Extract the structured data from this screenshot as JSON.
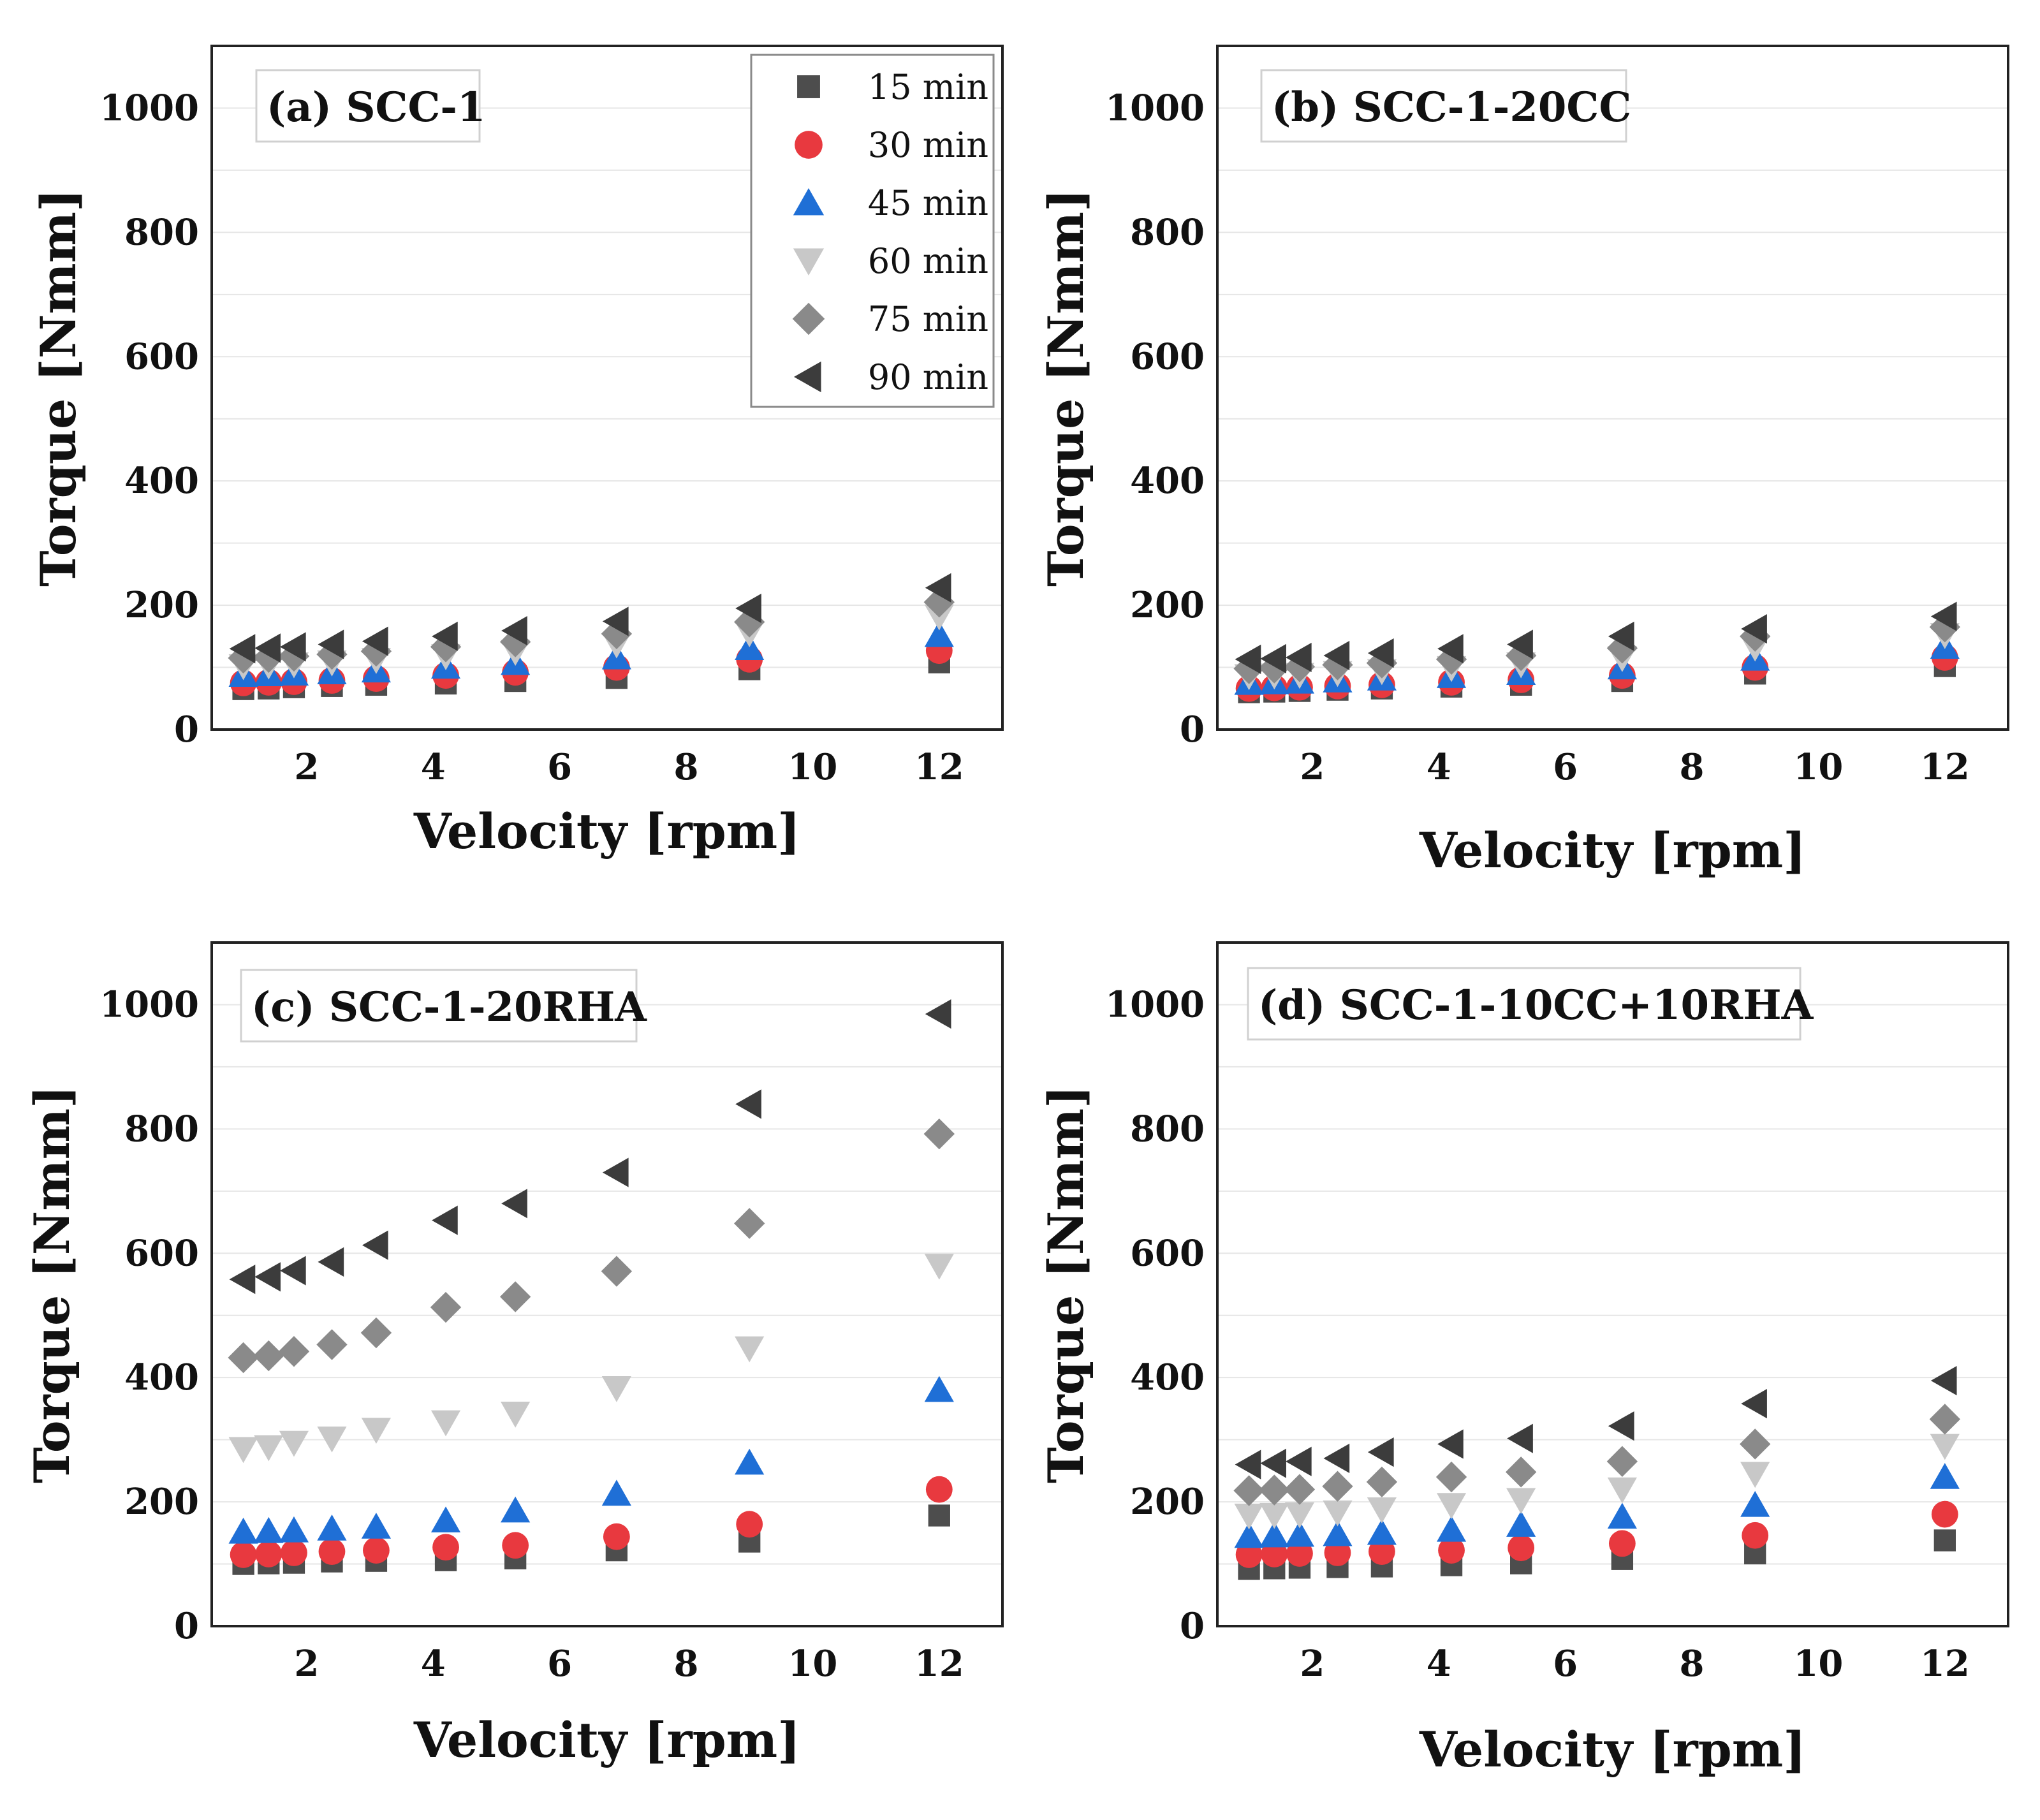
{
  "figure": {
    "xlabel": "Velocity [rpm]",
    "ylabel": "Torque [Nmm]"
  },
  "legend": [
    {
      "label": "15 min",
      "marker": "square",
      "color": "#4d4d4d"
    },
    {
      "label": "30 min",
      "marker": "circle",
      "color": "#e8393f"
    },
    {
      "label": "45 min",
      "marker": "triangle-up",
      "color": "#1f6fd6"
    },
    {
      "label": "60 min",
      "marker": "triangle-down",
      "color": "#c8c8c8"
    },
    {
      "label": "75 min",
      "marker": "diamond",
      "color": "#8a8a8a"
    },
    {
      "label": "90 min",
      "marker": "triangle-left",
      "color": "#3c3c3c"
    }
  ],
  "chart_data": [
    {
      "type": "scatter",
      "title": "(a) SCC-1",
      "xlabel": "Velocity [rpm]",
      "ylabel": "Torque [Nmm]",
      "xlim": [
        0.5,
        13
      ],
      "ylim": [
        0,
        1100
      ],
      "xticks": [
        2,
        4,
        6,
        8,
        10,
        12
      ],
      "yticks": [
        0,
        200,
        400,
        600,
        800,
        1000
      ],
      "grid": "y",
      "legend_position": "top-right",
      "x": [
        1.0,
        1.4,
        1.8,
        2.4,
        3.1,
        4.2,
        5.3,
        6.9,
        9.0,
        12.0
      ],
      "series": [
        {
          "name": "15 min",
          "values": [
            65,
            66,
            68,
            70,
            72,
            74,
            78,
            83,
            97,
            108
          ]
        },
        {
          "name": "30 min",
          "values": [
            75,
            76,
            77,
            79,
            82,
            87,
            92,
            100,
            113,
            127
          ]
        },
        {
          "name": "45 min",
          "values": [
            88,
            89,
            90,
            92,
            95,
            101,
            107,
            116,
            131,
            152
          ]
        },
        {
          "name": "60 min",
          "values": [
            102,
            103,
            105,
            108,
            112,
            118,
            125,
            137,
            155,
            182
          ]
        },
        {
          "name": "75 min",
          "values": [
            115,
            116,
            118,
            121,
            126,
            133,
            141,
            154,
            173,
            205
          ]
        },
        {
          "name": "90 min",
          "values": [
            130,
            131,
            133,
            137,
            142,
            150,
            159,
            174,
            195,
            228
          ]
        }
      ]
    },
    {
      "type": "scatter",
      "title": "(b) SCC-1-20CC",
      "xlabel": "Velocity [rpm]",
      "ylabel": "Torque [Nmm]",
      "xlim": [
        0.5,
        13
      ],
      "ylim": [
        0,
        1100
      ],
      "xticks": [
        2,
        4,
        6,
        8,
        10,
        12
      ],
      "yticks": [
        0,
        200,
        400,
        600,
        800,
        1000
      ],
      "grid": "y",
      "x": [
        1.0,
        1.4,
        1.8,
        2.4,
        3.1,
        4.2,
        5.3,
        6.9,
        9.0,
        12.0
      ],
      "series": [
        {
          "name": "15 min",
          "values": [
            60,
            61,
            62,
            64,
            66,
            69,
            72,
            78,
            90,
            102
          ]
        },
        {
          "name": "30 min",
          "values": [
            66,
            67,
            68,
            70,
            72,
            76,
            80,
            87,
            100,
            116
          ]
        },
        {
          "name": "45 min",
          "values": [
            75,
            76,
            77,
            79,
            82,
            86,
            91,
            100,
            114,
            133
          ]
        },
        {
          "name": "60 min",
          "values": [
            86,
            87,
            88,
            91,
            94,
            99,
            105,
            115,
            132,
            152
          ]
        },
        {
          "name": "75 min",
          "values": [
            98,
            99,
            101,
            104,
            107,
            113,
            119,
            131,
            150,
            165
          ]
        },
        {
          "name": "90 min",
          "values": [
            113,
            114,
            116,
            119,
            123,
            130,
            137,
            150,
            162,
            182
          ]
        }
      ]
    },
    {
      "type": "scatter",
      "title": "(c) SCC-1-20RHA",
      "xlabel": "Velocity [rpm]",
      "ylabel": "Torque [Nmm]",
      "xlim": [
        0.5,
        13
      ],
      "ylim": [
        0,
        1100
      ],
      "xticks": [
        2,
        4,
        6,
        8,
        10,
        12
      ],
      "yticks": [
        0,
        200,
        400,
        600,
        800,
        1000
      ],
      "grid": "y",
      "x": [
        1.0,
        1.4,
        1.8,
        2.4,
        3.1,
        4.2,
        5.3,
        6.9,
        9.0,
        12.0
      ],
      "series": [
        {
          "name": "15 min",
          "values": [
            100,
            101,
            102,
            104,
            105,
            106,
            109,
            122,
            136,
            178
          ]
        },
        {
          "name": "30 min",
          "values": [
            115,
            116,
            118,
            120,
            122,
            127,
            130,
            144,
            164,
            220
          ]
        },
        {
          "name": "45 min",
          "values": [
            152,
            153,
            154,
            157,
            160,
            170,
            186,
            213,
            263,
            380
          ]
        },
        {
          "name": "60 min",
          "values": [
            285,
            288,
            295,
            302,
            316,
            328,
            342,
            383,
            447,
            580
          ]
        },
        {
          "name": "75 min",
          "values": [
            432,
            435,
            442,
            453,
            472,
            513,
            530,
            571,
            648,
            792
          ]
        },
        {
          "name": "90 min",
          "values": [
            558,
            562,
            572,
            586,
            613,
            653,
            680,
            730,
            840,
            985
          ]
        }
      ]
    },
    {
      "type": "scatter",
      "title": "(d) SCC-1-10CC+10RHA",
      "xlabel": "Velocity [rpm]",
      "ylabel": "Torque [Nmm]",
      "xlim": [
        0.5,
        13
      ],
      "ylim": [
        0,
        1100
      ],
      "xticks": [
        2,
        4,
        6,
        8,
        10,
        12
      ],
      "yticks": [
        0,
        200,
        400,
        600,
        800,
        1000
      ],
      "grid": "y",
      "x": [
        1.0,
        1.4,
        1.8,
        2.4,
        3.1,
        4.2,
        5.3,
        6.9,
        9.0,
        12.0
      ],
      "series": [
        {
          "name": "15 min",
          "values": [
            92,
            93,
            94,
            95,
            96,
            98,
            101,
            108,
            117,
            138
          ]
        },
        {
          "name": "30 min",
          "values": [
            115,
            116,
            117,
            118,
            120,
            122,
            126,
            133,
            146,
            180
          ]
        },
        {
          "name": "45 min",
          "values": [
            145,
            146,
            147,
            148,
            150,
            155,
            163,
            176,
            195,
            240
          ]
        },
        {
          "name": "60 min",
          "values": [
            178,
            179,
            180,
            183,
            188,
            195,
            203,
            220,
            245,
            290
          ]
        },
        {
          "name": "75 min",
          "values": [
            218,
            219,
            220,
            225,
            232,
            240,
            248,
            265,
            293,
            333
          ]
        },
        {
          "name": "90 min",
          "values": [
            260,
            262,
            265,
            270,
            280,
            293,
            302,
            322,
            358,
            395
          ]
        }
      ]
    }
  ]
}
